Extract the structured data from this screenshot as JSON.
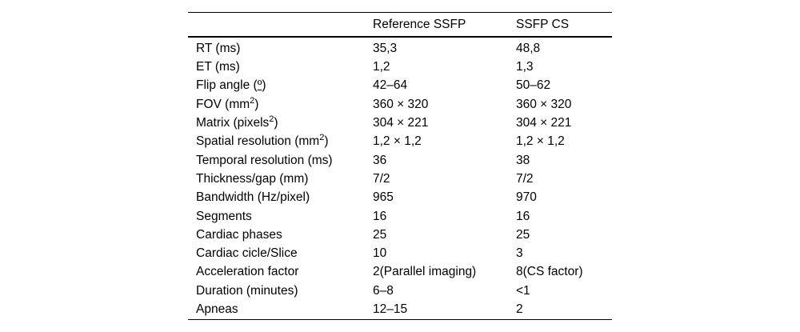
{
  "table": {
    "text_color": "#000000",
    "rule_color": "#000000",
    "columns": [
      "",
      "Reference SSFP",
      "SSFP CS"
    ],
    "rows": [
      {
        "label_parts": [
          {
            "t": "RT (ms)"
          }
        ],
        "ref": "35,3",
        "cs": "48,8"
      },
      {
        "label_parts": [
          {
            "t": "ET (ms)"
          }
        ],
        "ref": "1,2",
        "cs": "1,3"
      },
      {
        "label_parts": [
          {
            "t": "Flip angle ("
          },
          {
            "t": "º",
            "ord": true
          },
          {
            "t": ")"
          }
        ],
        "ref": "42–64",
        "cs": "50–62"
      },
      {
        "label_parts": [
          {
            "t": "FOV (mm"
          },
          {
            "t": "2",
            "sup": true
          },
          {
            "t": ")"
          }
        ],
        "ref": "360 × 320",
        "cs": "360 × 320"
      },
      {
        "label_parts": [
          {
            "t": "Matrix (pixels"
          },
          {
            "t": "2",
            "sup": true
          },
          {
            "t": ")"
          }
        ],
        "ref": "304 × 221",
        "cs": "304 × 221"
      },
      {
        "label_parts": [
          {
            "t": "Spatial resolution (mm"
          },
          {
            "t": "2",
            "sup": true
          },
          {
            "t": ")"
          }
        ],
        "ref": "1,2 × 1,2",
        "cs": "1,2 × 1,2"
      },
      {
        "label_parts": [
          {
            "t": "Temporal resolution (ms)"
          }
        ],
        "ref": "36",
        "cs": "38"
      },
      {
        "label_parts": [
          {
            "t": "Thickness/gap (mm)"
          }
        ],
        "ref": "7/2",
        "cs": "7/2"
      },
      {
        "label_parts": [
          {
            "t": "Bandwidth (Hz/pixel)"
          }
        ],
        "ref": "965",
        "cs": "970"
      },
      {
        "label_parts": [
          {
            "t": "Segments"
          }
        ],
        "ref": "16",
        "cs": "16"
      },
      {
        "label_parts": [
          {
            "t": "Cardiac phases"
          }
        ],
        "ref": "25",
        "cs": "25"
      },
      {
        "label_parts": [
          {
            "t": "Cardiac cicle/Slice"
          }
        ],
        "ref": "10",
        "cs": "3"
      },
      {
        "label_parts": [
          {
            "t": "Acceleration factor"
          }
        ],
        "ref": "2(Parallel imaging)",
        "cs": "8(CS factor)"
      },
      {
        "label_parts": [
          {
            "t": "Duration (minutes)"
          }
        ],
        "ref": "6–8",
        "cs": "<1"
      },
      {
        "label_parts": [
          {
            "t": "Apneas"
          }
        ],
        "ref": "12–15",
        "cs": "2"
      }
    ]
  },
  "chart_data": {
    "type": "table",
    "title": "",
    "columns": [
      "",
      "Reference SSFP",
      "SSFP CS"
    ],
    "rows": [
      [
        "RT (ms)",
        "35,3",
        "48,8"
      ],
      [
        "ET (ms)",
        "1,2",
        "1,3"
      ],
      [
        "Flip angle (º)",
        "42–64",
        "50–62"
      ],
      [
        "FOV (mm²)",
        "360 × 320",
        "360 × 320"
      ],
      [
        "Matrix (pixels²)",
        "304 × 221",
        "304 × 221"
      ],
      [
        "Spatial resolution (mm²)",
        "1,2 × 1,2",
        "1,2 × 1,2"
      ],
      [
        "Temporal resolution (ms)",
        "36",
        "38"
      ],
      [
        "Thickness/gap (mm)",
        "7/2",
        "7/2"
      ],
      [
        "Bandwidth (Hz/pixel)",
        "965",
        "970"
      ],
      [
        "Segments",
        "16",
        "16"
      ],
      [
        "Cardiac phases",
        "25",
        "25"
      ],
      [
        "Cardiac cicle/Slice",
        "10",
        "3"
      ],
      [
        "Acceleration factor",
        "2(Parallel imaging)",
        "8(CS factor)"
      ],
      [
        "Duration (minutes)",
        "6–8",
        "<1"
      ],
      [
        "Apneas",
        "12–15",
        "2"
      ]
    ]
  }
}
